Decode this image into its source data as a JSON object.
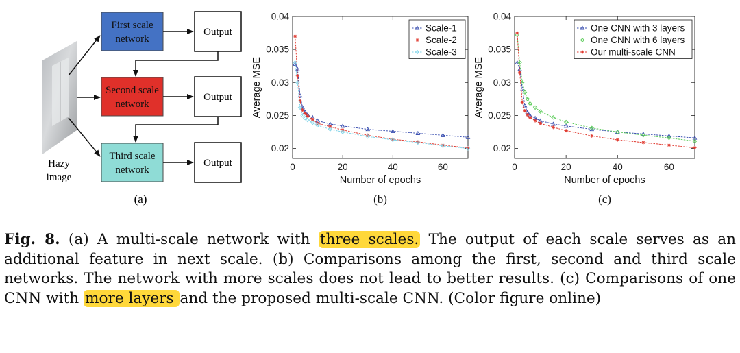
{
  "diagram": {
    "input_label_line1": "Hazy",
    "input_label_line2": "image",
    "boxes": [
      {
        "line1": "First scale",
        "line2": "network",
        "color": "#4472c4"
      },
      {
        "line1": "Second scale",
        "line2": "network",
        "color": "#e0302a"
      },
      {
        "line1": "Third scale",
        "line2": "network",
        "color": "#8fdcd6"
      }
    ],
    "output_label": "Output",
    "panel_label": "(a)"
  },
  "chart_data": [
    {
      "type": "line",
      "panel_label": "(b)",
      "xlabel": "Number of epochs",
      "ylabel": "Average MSE",
      "xlim": [
        0,
        70
      ],
      "ylim": [
        0.0185,
        0.04
      ],
      "xticks": [
        0,
        20,
        40,
        60
      ],
      "yticks": [
        0.02,
        0.025,
        0.03,
        0.035,
        0.04
      ],
      "ytick_labels": [
        "0.02",
        "0.025",
        "0.03",
        "0.035",
        "0.04"
      ],
      "grid": false,
      "legend_position": "top-right",
      "series": [
        {
          "name": "Scale-1",
          "color": "#3a4fb0",
          "marker": "triangle",
          "points": [
            [
              1,
              0.0328
            ],
            [
              2,
              0.032
            ],
            [
              3,
              0.028
            ],
            [
              4,
              0.0262
            ],
            [
              5,
              0.0255
            ],
            [
              6,
              0.0251
            ],
            [
              8,
              0.0247
            ],
            [
              10,
              0.0242
            ],
            [
              15,
              0.0237
            ],
            [
              20,
              0.0234
            ],
            [
              30,
              0.0229
            ],
            [
              40,
              0.0226
            ],
            [
              50,
              0.0223
            ],
            [
              60,
              0.022
            ],
            [
              70,
              0.0217
            ]
          ]
        },
        {
          "name": "Scale-2",
          "color": "#e03a30",
          "marker": "asterisk",
          "points": [
            [
              1,
              0.037
            ],
            [
              2,
              0.031
            ],
            [
              3,
              0.0272
            ],
            [
              4,
              0.0258
            ],
            [
              5,
              0.0253
            ],
            [
              6,
              0.0249
            ],
            [
              8,
              0.0244
            ],
            [
              10,
              0.0238
            ],
            [
              15,
              0.0233
            ],
            [
              20,
              0.0228
            ],
            [
              30,
              0.022
            ],
            [
              40,
              0.0214
            ],
            [
              50,
              0.021
            ],
            [
              60,
              0.0205
            ],
            [
              70,
              0.0201
            ]
          ]
        },
        {
          "name": "Scale-3",
          "color": "#7fd3e8",
          "marker": "diamond",
          "points": [
            [
              1,
              0.033
            ],
            [
              2,
              0.03
            ],
            [
              3,
              0.0262
            ],
            [
              4,
              0.025
            ],
            [
              5,
              0.0246
            ],
            [
              6,
              0.0243
            ],
            [
              8,
              0.0239
            ],
            [
              10,
              0.0235
            ],
            [
              15,
              0.0229
            ],
            [
              20,
              0.0225
            ],
            [
              30,
              0.0218
            ],
            [
              40,
              0.0213
            ],
            [
              50,
              0.0209
            ],
            [
              60,
              0.0204
            ],
            [
              70,
              0.02
            ]
          ]
        }
      ]
    },
    {
      "type": "line",
      "panel_label": "(c)",
      "xlabel": "Number of epochs",
      "ylabel": "Average MSE",
      "xlim": [
        0,
        70
      ],
      "ylim": [
        0.0185,
        0.04
      ],
      "xticks": [
        0,
        20,
        40,
        60
      ],
      "yticks": [
        0.02,
        0.025,
        0.03,
        0.035,
        0.04
      ],
      "ytick_labels": [
        "0.02",
        "0.025",
        "0.03",
        "0.035",
        "0.04"
      ],
      "grid": false,
      "legend_position": "top-right",
      "series": [
        {
          "name": "One CNN with 3 layers",
          "color": "#3a4fb0",
          "marker": "triangle",
          "points": [
            [
              1,
              0.033
            ],
            [
              2,
              0.032
            ],
            [
              3,
              0.029
            ],
            [
              4,
              0.0265
            ],
            [
              5,
              0.0255
            ],
            [
              6,
              0.025
            ],
            [
              8,
              0.0246
            ],
            [
              10,
              0.0242
            ],
            [
              15,
              0.0237
            ],
            [
              20,
              0.0234
            ],
            [
              30,
              0.0229
            ],
            [
              40,
              0.0225
            ],
            [
              50,
              0.0222
            ],
            [
              60,
              0.0219
            ],
            [
              70,
              0.0216
            ]
          ]
        },
        {
          "name": "One CNN with 6 layers",
          "color": "#5ccc5a",
          "marker": "diamond",
          "points": [
            [
              1,
              0.0372
            ],
            [
              2,
              0.033
            ],
            [
              3,
              0.03
            ],
            [
              4,
              0.0285
            ],
            [
              5,
              0.0275
            ],
            [
              6,
              0.0268
            ],
            [
              8,
              0.0262
            ],
            [
              10,
              0.0256
            ],
            [
              15,
              0.0247
            ],
            [
              20,
              0.024
            ],
            [
              30,
              0.0231
            ],
            [
              40,
              0.0225
            ],
            [
              50,
              0.022
            ],
            [
              60,
              0.0216
            ],
            [
              70,
              0.0211
            ]
          ]
        },
        {
          "name": "Our multi-scale CNN",
          "color": "#e03a30",
          "marker": "asterisk",
          "points": [
            [
              1,
              0.0375
            ],
            [
              2,
              0.0315
            ],
            [
              3,
              0.027
            ],
            [
              4,
              0.0257
            ],
            [
              5,
              0.0251
            ],
            [
              6,
              0.0247
            ],
            [
              8,
              0.0242
            ],
            [
              10,
              0.0238
            ],
            [
              15,
              0.0232
            ],
            [
              20,
              0.0227
            ],
            [
              30,
              0.0219
            ],
            [
              40,
              0.0213
            ],
            [
              50,
              0.0209
            ],
            [
              60,
              0.0205
            ],
            [
              70,
              0.0201
            ]
          ]
        }
      ]
    }
  ],
  "caption": {
    "label": "Fig. 8.",
    "part1": " (a) A multi-scale network with ",
    "highlight1": "three scales.",
    "part2": " The output of each scale serves as an additional feature in next scale. (b) Comparisons among the first, second and third scale networks. The network with more scales does not lead to better results. (c) Comparisons of one CNN with ",
    "highlight2": "more layers ",
    "part3": "and the proposed multi-scale CNN. (Color figure online)",
    "highlight_color": "#ffd83a"
  }
}
